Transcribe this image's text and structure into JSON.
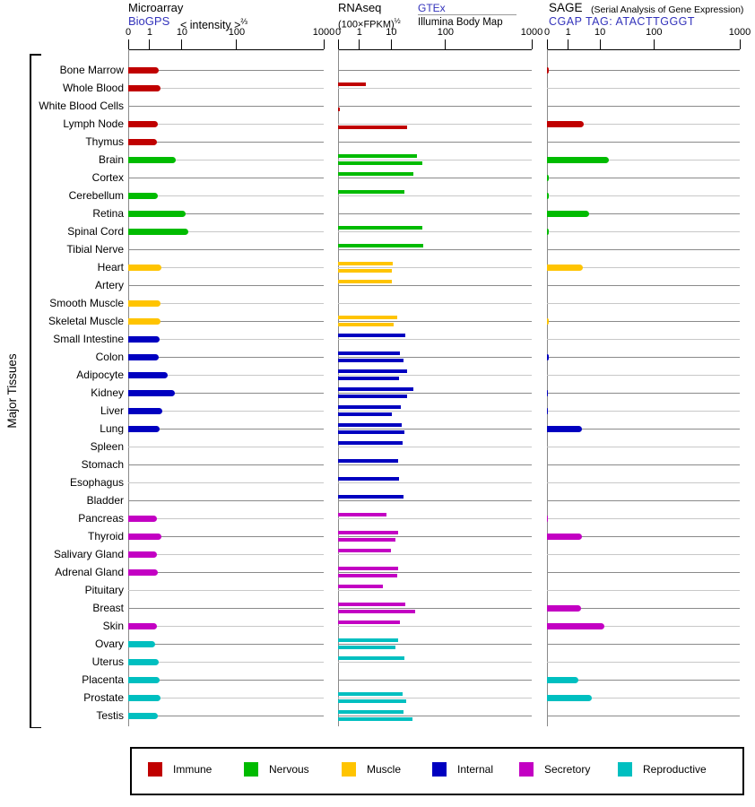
{
  "side_label": "Major Tissues",
  "panels": {
    "microarray": {
      "title": "Microarray",
      "link": "BioGPS",
      "scale_label": "< intensity >",
      "scale_exponent": "⅔"
    },
    "rnaseq": {
      "title": "RNAseq",
      "scale_label": "(100×FPKM)",
      "scale_exponent": "½",
      "link": "GTEx",
      "link2": "Illumina Body Map"
    },
    "sage": {
      "title": "SAGE",
      "subtitle": "(Serial Analysis of Gene Expression)",
      "link": "CGAP TAG: ATACTTGGGT"
    }
  },
  "axis_ticks": [
    {
      "label": "0",
      "pct": 0
    },
    {
      "label": "1",
      "pct": 11
    },
    {
      "label": "10",
      "pct": 27.5
    },
    {
      "label": "100",
      "pct": 55.5
    },
    {
      "label": "1000",
      "pct": 100
    }
  ],
  "legend": [
    {
      "label": "Immune",
      "key": "immune"
    },
    {
      "label": "Nervous",
      "key": "nervous"
    },
    {
      "label": "Muscle",
      "key": "muscle"
    },
    {
      "label": "Internal",
      "key": "internal"
    },
    {
      "label": "Secretory",
      "key": "secretory"
    },
    {
      "label": "Reproductive",
      "key": "reproductive"
    }
  ],
  "colors": {
    "immune": "#c00000",
    "nervous": "#00bb00",
    "muscle": "#ffc400",
    "internal": "#0000c0",
    "secretory": "#c300c3",
    "reproductive": "#00bfc0",
    "link_blue": "#3333bb",
    "grid_dark": "#8a8a8a",
    "grid_light": "#c8c8c8"
  },
  "chart_data": {
    "type": "bar",
    "orientation": "horizontal",
    "title_panels": [
      "Microarray BioGPS < intensity >^(2/3)",
      "RNAseq (100×FPKM)^(1/2) — GTEx / Illumina Body Map",
      "SAGE CGAP TAG: ATACTTGGGT"
    ],
    "x_scale": "nonlinear power-transformed axis; identical on all 3 panels",
    "ticks": {
      "labels": [
        0,
        1,
        10,
        100,
        1000
      ],
      "pct": [
        0,
        11,
        27.5,
        55.5,
        100
      ]
    },
    "series_names": [
      "Microarray BioGPS",
      "RNAseq GTEx",
      "RNAseq Illumina Body Map",
      "SAGE CGAP"
    ],
    "bars_pct_note": "pct = bar length as % of panel axis width, order [microarray, gtex, bodymap, sage]",
    "values_note": "val = approximate value read off tick scale, order [microarray, gtex, bodymap, sage]",
    "tissues": [
      {
        "name": "Bone Marrow",
        "group": "immune",
        "pct": [
          15.5,
          0,
          0,
          1
        ],
        "val": [
          1.9,
          0,
          0,
          0.1
        ]
      },
      {
        "name": "Whole Blood",
        "group": "immune",
        "pct": [
          16.5,
          14.4,
          0,
          0
        ],
        "val": [
          2.2,
          1.6,
          0,
          0
        ]
      },
      {
        "name": "White Blood Cells",
        "group": "immune",
        "pct": [
          0,
          0,
          1,
          0
        ],
        "val": [
          0,
          0,
          0.1,
          0
        ]
      },
      {
        "name": "Lymph Node",
        "group": "immune",
        "pct": [
          15,
          0,
          35.6,
          19.1
        ],
        "val": [
          1.7,
          0,
          19.5,
          3.1
        ]
      },
      {
        "name": "Thymus",
        "group": "immune",
        "pct": [
          14.7,
          0,
          0,
          0
        ],
        "val": [
          1.7,
          0,
          0,
          0
        ]
      },
      {
        "name": "Brain",
        "group": "nervous",
        "pct": [
          24.2,
          40.7,
          43.5,
          32.1
        ],
        "val": [
          6.3,
          30,
          37,
          14.6
        ]
      },
      {
        "name": "Cortex",
        "group": "nervous",
        "pct": [
          0,
          38.9,
          0,
          0.8
        ],
        "val": [
          0,
          25.5,
          0,
          0.1
        ]
      },
      {
        "name": "Cerebellum",
        "group": "nervous",
        "pct": [
          15,
          34.3,
          0,
          0.8
        ],
        "val": [
          1.7,
          17.5,
          0,
          0.1
        ]
      },
      {
        "name": "Retina",
        "group": "nervous",
        "pct": [
          29.4,
          0,
          0,
          21.9
        ],
        "val": [
          11.7,
          0,
          0,
          4.6
        ]
      },
      {
        "name": "Spinal Cord",
        "group": "nervous",
        "pct": [
          30.7,
          43.5,
          0,
          0.8
        ],
        "val": [
          13,
          37,
          0,
          0.1
        ]
      },
      {
        "name": "Tibial Nerve",
        "group": "nervous",
        "pct": [
          0,
          44,
          0,
          0
        ],
        "val": [
          0,
          39,
          0,
          0
        ]
      },
      {
        "name": "Heart",
        "group": "muscle",
        "pct": [
          17,
          28.2,
          27.8,
          18.6
        ],
        "val": [
          2.3,
          10.6,
          10.3,
          2.9
        ]
      },
      {
        "name": "Artery",
        "group": "muscle",
        "pct": [
          0,
          27.8,
          0,
          0
        ],
        "val": [
          0,
          10.3,
          0,
          0
        ]
      },
      {
        "name": "Smooth Muscle",
        "group": "muscle",
        "pct": [
          16.5,
          0,
          0,
          0
        ],
        "val": [
          2.2,
          0,
          0,
          0
        ]
      },
      {
        "name": "Skeletal Muscle",
        "group": "muscle",
        "pct": [
          16.5,
          30.6,
          28.7,
          1
        ],
        "val": [
          2.2,
          12.9,
          11,
          0.1
        ]
      },
      {
        "name": "Small Intestine",
        "group": "internal",
        "pct": [
          16.1,
          34.7,
          0,
          0
        ],
        "val": [
          2,
          18.1,
          0,
          0
        ]
      },
      {
        "name": "Colon",
        "group": "internal",
        "pct": [
          15.6,
          31.9,
          33.8,
          0.8
        ],
        "val": [
          1.9,
          14.4,
          16.8,
          0.1
        ]
      },
      {
        "name": "Adipocyte",
        "group": "internal",
        "pct": [
          20.2,
          35.6,
          31.5,
          0
        ],
        "val": [
          3.6,
          19.5,
          13.9,
          0
        ]
      },
      {
        "name": "Kidney",
        "group": "internal",
        "pct": [
          23.9,
          38.9,
          35.6,
          0.6
        ],
        "val": [
          6,
          25.5,
          19.5,
          0.1
        ]
      },
      {
        "name": "Liver",
        "group": "internal",
        "pct": [
          17.4,
          32.4,
          27.8,
          0.6
        ],
        "val": [
          2.4,
          15,
          10.3,
          0.1
        ]
      },
      {
        "name": "Lung",
        "group": "internal",
        "pct": [
          16.1,
          32.9,
          34.3,
          18.1
        ],
        "val": [
          2,
          15.6,
          17.5,
          2.7
        ]
      },
      {
        "name": "Spleen",
        "group": "internal",
        "pct": [
          0,
          33.3,
          0,
          0
        ],
        "val": [
          0,
          16.1,
          0,
          0
        ]
      },
      {
        "name": "Stomach",
        "group": "internal",
        "pct": [
          0,
          31,
          0,
          0
        ],
        "val": [
          0,
          13.3,
          0,
          0
        ]
      },
      {
        "name": "Esophagus",
        "group": "internal",
        "pct": [
          0,
          31.5,
          0,
          0
        ],
        "val": [
          0,
          13.9,
          0,
          0
        ]
      },
      {
        "name": "Bladder",
        "group": "internal",
        "pct": [
          0,
          33.8,
          0,
          0
        ],
        "val": [
          0,
          16.8,
          0,
          0
        ]
      },
      {
        "name": "Pancreas",
        "group": "secretory",
        "pct": [
          14.7,
          25,
          0,
          0.6
        ],
        "val": [
          1.7,
          7.1,
          0,
          0.1
        ]
      },
      {
        "name": "Thyroid",
        "group": "secretory",
        "pct": [
          17,
          31,
          29.6,
          18.1
        ],
        "val": [
          2.3,
          13.3,
          11.9,
          2.7
        ]
      },
      {
        "name": "Salivary Gland",
        "group": "secretory",
        "pct": [
          14.7,
          27.3,
          0,
          0
        ],
        "val": [
          1.7,
          9.7,
          0,
          0
        ]
      },
      {
        "name": "Adrenal Gland",
        "group": "secretory",
        "pct": [
          15.1,
          31,
          30.6,
          0
        ],
        "val": [
          1.8,
          13.3,
          12.9,
          0
        ]
      },
      {
        "name": "Pituitary",
        "group": "secretory",
        "pct": [
          0,
          23.1,
          0,
          0
        ],
        "val": [
          0,
          5.4,
          0,
          0
        ]
      },
      {
        "name": "Breast",
        "group": "secretory",
        "pct": [
          0,
          34.7,
          39.8,
          17.7
        ],
        "val": [
          0,
          18.1,
          27.5,
          2.5
        ]
      },
      {
        "name": "Skin",
        "group": "secretory",
        "pct": [
          14.7,
          31.9,
          0,
          29.8
        ],
        "val": [
          1.7,
          14.4,
          0,
          12.1
        ]
      },
      {
        "name": "Ovary",
        "group": "reproductive",
        "pct": [
          13.8,
          31,
          29.6,
          0
        ],
        "val": [
          1.5,
          13.3,
          11.9,
          0
        ]
      },
      {
        "name": "Uterus",
        "group": "reproductive",
        "pct": [
          15.6,
          34.3,
          0,
          0
        ],
        "val": [
          1.9,
          17.5,
          0,
          0
        ]
      },
      {
        "name": "Placenta",
        "group": "reproductive",
        "pct": [
          16.1,
          0,
          0,
          16.3
        ],
        "val": [
          2,
          0,
          0,
          2.1
        ]
      },
      {
        "name": "Prostate",
        "group": "reproductive",
        "pct": [
          16.5,
          33.3,
          35.2,
          23.3
        ],
        "val": [
          2.2,
          16.1,
          18.8,
          5.6
        ]
      },
      {
        "name": "Testis",
        "group": "reproductive",
        "pct": [
          15.1,
          33.8,
          38.4,
          0
        ],
        "val": [
          1.8,
          16.8,
          24.5,
          0
        ]
      }
    ]
  }
}
